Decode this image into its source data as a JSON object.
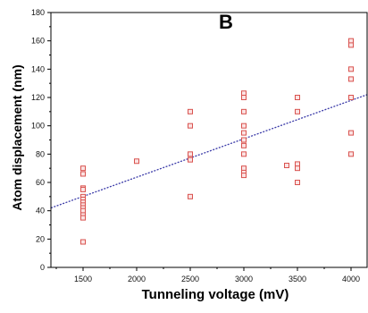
{
  "chart_data": {
    "type": "scatter",
    "title": "",
    "panel_label": "B",
    "xlabel": "Tunneling voltage (mV)",
    "ylabel": "Atom displacement (nm)",
    "xlim": [
      1200,
      4150
    ],
    "ylim": [
      0,
      180
    ],
    "x_ticks": [
      1500,
      2000,
      2500,
      3000,
      3500,
      4000
    ],
    "y_ticks": [
      0,
      20,
      40,
      60,
      80,
      100,
      120,
      140,
      160,
      180
    ],
    "grid": false,
    "marker_color": "#d9534f",
    "fit_line_color": "#3a3aa8",
    "points": [
      {
        "x": 1500,
        "y": 70
      },
      {
        "x": 1500,
        "y": 66
      },
      {
        "x": 1500,
        "y": 56
      },
      {
        "x": 1500,
        "y": 55
      },
      {
        "x": 1500,
        "y": 50
      },
      {
        "x": 1500,
        "y": 48
      },
      {
        "x": 1500,
        "y": 46
      },
      {
        "x": 1500,
        "y": 44
      },
      {
        "x": 1500,
        "y": 42
      },
      {
        "x": 1500,
        "y": 40
      },
      {
        "x": 1500,
        "y": 37
      },
      {
        "x": 1500,
        "y": 35
      },
      {
        "x": 1500,
        "y": 18
      },
      {
        "x": 2000,
        "y": 75
      },
      {
        "x": 2500,
        "y": 110
      },
      {
        "x": 2500,
        "y": 100
      },
      {
        "x": 2500,
        "y": 80
      },
      {
        "x": 2500,
        "y": 76
      },
      {
        "x": 2500,
        "y": 50
      },
      {
        "x": 3000,
        "y": 123
      },
      {
        "x": 3000,
        "y": 120
      },
      {
        "x": 3000,
        "y": 110
      },
      {
        "x": 3000,
        "y": 100
      },
      {
        "x": 3000,
        "y": 95
      },
      {
        "x": 3000,
        "y": 90
      },
      {
        "x": 3000,
        "y": 86
      },
      {
        "x": 3000,
        "y": 80
      },
      {
        "x": 3000,
        "y": 70
      },
      {
        "x": 3000,
        "y": 67
      },
      {
        "x": 3000,
        "y": 65
      },
      {
        "x": 3400,
        "y": 72
      },
      {
        "x": 3500,
        "y": 120
      },
      {
        "x": 3500,
        "y": 110
      },
      {
        "x": 3500,
        "y": 73
      },
      {
        "x": 3500,
        "y": 70
      },
      {
        "x": 3500,
        "y": 60
      },
      {
        "x": 4000,
        "y": 160
      },
      {
        "x": 4000,
        "y": 157
      },
      {
        "x": 4000,
        "y": 140
      },
      {
        "x": 4000,
        "y": 133
      },
      {
        "x": 4000,
        "y": 120
      },
      {
        "x": 4000,
        "y": 95
      },
      {
        "x": 4000,
        "y": 80
      }
    ],
    "fit_line": [
      {
        "x": 1200,
        "y": 42
      },
      {
        "x": 4150,
        "y": 122
      }
    ]
  }
}
